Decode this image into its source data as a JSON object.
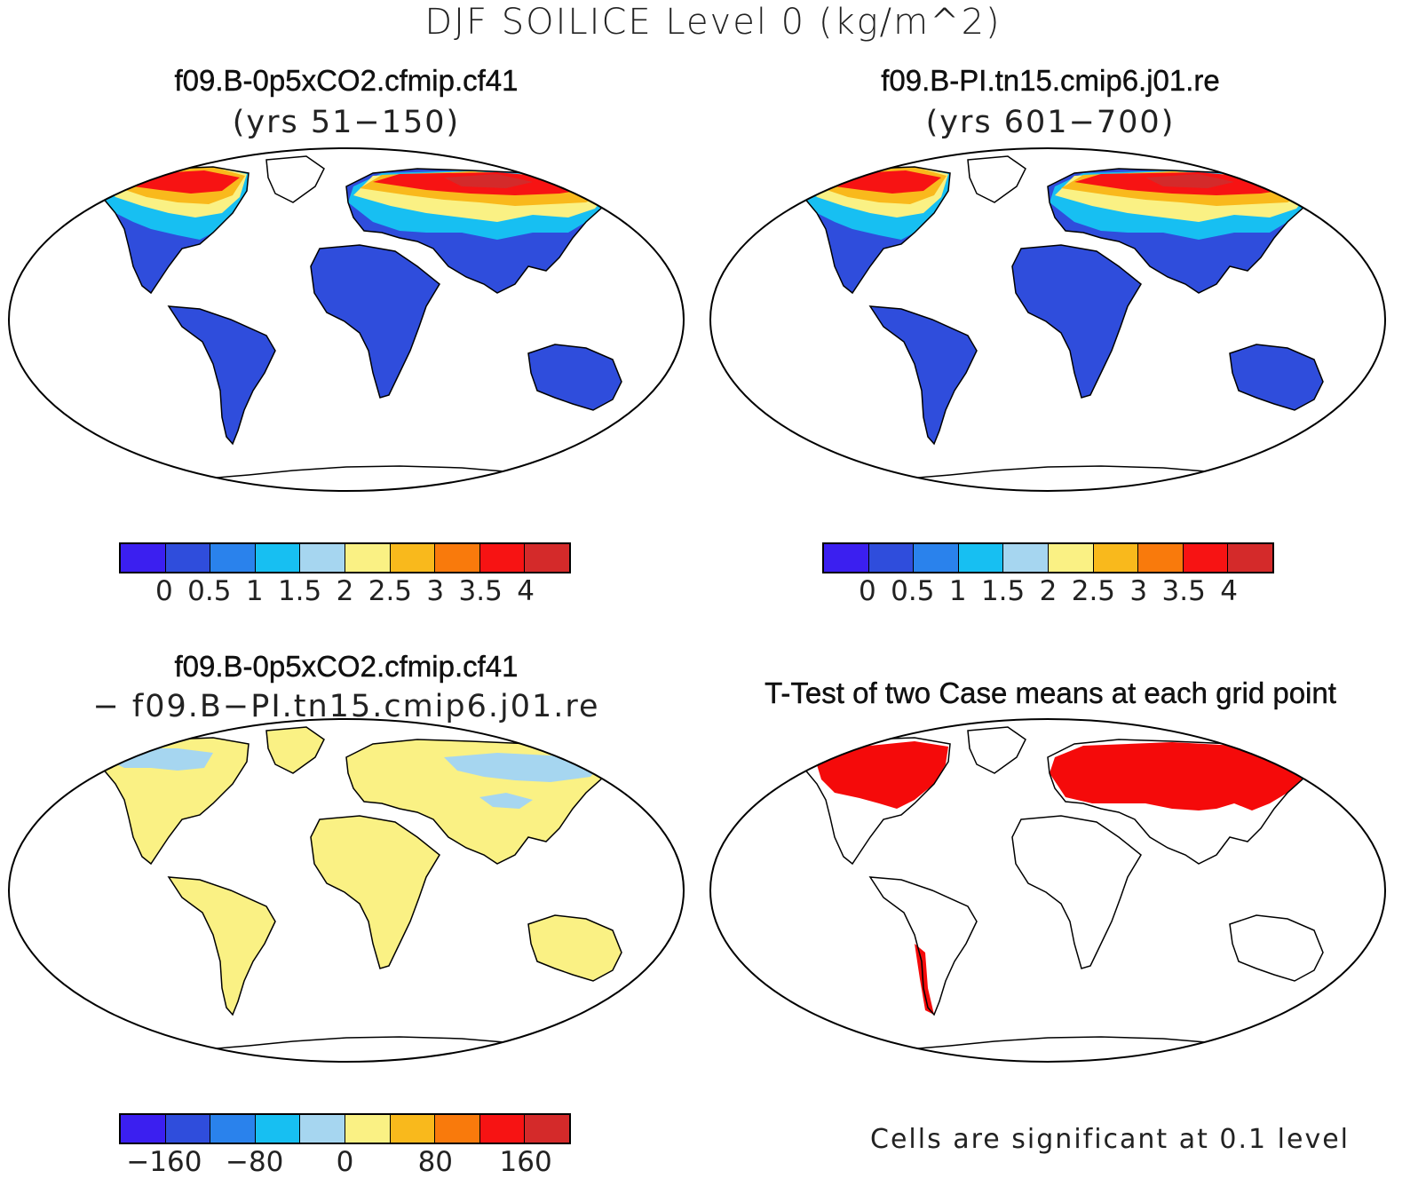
{
  "title": "DJF SOILICE Level 0 (kg/m^2)",
  "panels": [
    {
      "id": "p1",
      "title": "f09.B-0p5xCO2.cfmip.cf41",
      "subtitle": "(yrs 51−150)"
    },
    {
      "id": "p2",
      "title": "f09.B-PI.tn15.cmip6.j01.re",
      "subtitle": "(yrs 601−700)"
    },
    {
      "id": "p3",
      "title": "f09.B-0p5xCO2.cfmip.cf41",
      "subtitle": "− f09.B−PI.tn15.cmip6.j01.re"
    },
    {
      "id": "p4",
      "title": "T-Test of two Case means at each grid point",
      "subtitle": ""
    }
  ],
  "colorbar_colors": [
    "#3b1ff0",
    "#2f4ddc",
    "#2a82ec",
    "#17bff2",
    "#a6d6f0",
    "#faf184",
    "#f9b91c",
    "#f97a0c",
    "#f71313",
    "#d42a2a"
  ],
  "colorbar_labels_abs": [
    "0",
    "0.5",
    "1",
    "1.5",
    "2",
    "2.5",
    "3",
    "3.5",
    "4"
  ],
  "colorbar_labels_diff": [
    "−160",
    "−80",
    "0",
    "80",
    "160"
  ],
  "significance_note": "Cells are significant at 0.1 level",
  "significance_color": "#f50a0a"
}
